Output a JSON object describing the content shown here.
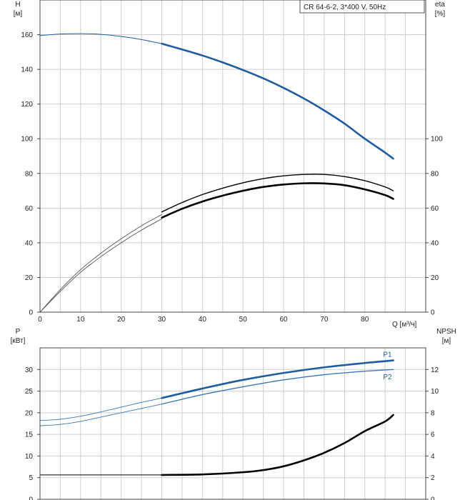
{
  "legend_text": "CR 64-6-2, 3*400 V, 50Hz",
  "colors": {
    "blue": "#1f5ca0",
    "blue_light": "#3b76b8",
    "black": "#000000",
    "grid": "#cfcfcf"
  },
  "chart_data": [
    {
      "type": "line",
      "id": "top",
      "left_axis": {
        "label_top": "H",
        "label_unit": "[м]",
        "min": 0,
        "max": 180,
        "ticks": [
          0,
          20,
          40,
          60,
          80,
          100,
          120,
          140,
          160
        ]
      },
      "right_axis": {
        "label_top": "eta",
        "label_unit": "[%]",
        "min": 0,
        "max": 180,
        "ticks": [
          0,
          20,
          40,
          60,
          80,
          100
        ]
      },
      "x_axis": {
        "label": "Q [м³/ч]",
        "min": 0,
        "max": 95,
        "ticks": [
          0,
          10,
          20,
          30,
          40,
          50,
          60,
          70,
          80
        ]
      },
      "series": [
        {
          "key": "H_thin",
          "color": "#1f5ca0",
          "width": 1,
          "axis": "left",
          "x": [
            0,
            5,
            10,
            15,
            20,
            25,
            30
          ],
          "y": [
            159.5,
            160.4,
            160.6,
            160.2,
            159,
            157.2,
            154.8
          ]
        },
        {
          "key": "H_thick",
          "color": "#1f5ca0",
          "width": 2.6,
          "axis": "left",
          "x": [
            30,
            35,
            40,
            45,
            50,
            55,
            60,
            65,
            70,
            75,
            80,
            85,
            87
          ],
          "y": [
            154.8,
            151.5,
            148,
            144,
            139.6,
            134.8,
            129.3,
            123.2,
            116.3,
            108.7,
            100,
            92,
            88.5
          ]
        },
        {
          "key": "eta1_thin",
          "color": "#555555",
          "width": 0.9,
          "axis": "right",
          "x": [
            0,
            5,
            10,
            15,
            20,
            25,
            30
          ],
          "y": [
            0,
            13,
            24.5,
            34,
            42.3,
            49.8,
            56.3
          ]
        },
        {
          "key": "eta2_thin",
          "color": "#555555",
          "width": 0.9,
          "axis": "right",
          "x": [
            0,
            5,
            10,
            15,
            20,
            25,
            30
          ],
          "y": [
            0,
            12,
            23,
            32,
            40,
            47.3,
            53.8
          ]
        },
        {
          "key": "eta1_thick",
          "color": "#000000",
          "width": 1.4,
          "axis": "right",
          "x": [
            30,
            35,
            40,
            45,
            50,
            55,
            60,
            65,
            70,
            75,
            80,
            85,
            87
          ],
          "y": [
            57.8,
            63.2,
            67.8,
            71.5,
            74.6,
            77,
            78.6,
            79.4,
            79.4,
            78.2,
            75.8,
            72.2,
            70
          ]
        },
        {
          "key": "eta2_thick",
          "color": "#000000",
          "width": 2.6,
          "axis": "right",
          "x": [
            30,
            35,
            40,
            45,
            50,
            55,
            60,
            65,
            70,
            75,
            80,
            85,
            87
          ],
          "y": [
            54.5,
            59.6,
            63.8,
            67.2,
            70,
            72.2,
            73.6,
            74.3,
            74.2,
            73.2,
            70.8,
            67.5,
            65.3
          ]
        }
      ]
    },
    {
      "type": "line",
      "id": "bottom",
      "left_axis": {
        "label_top": "P",
        "label_unit": "[кВт]",
        "min": 0,
        "max": 35,
        "ticks": [
          0,
          5,
          10,
          15,
          20,
          25,
          30
        ]
      },
      "right_axis": {
        "label_top": "NPSH",
        "label_unit": "[м]",
        "min": 0,
        "max": 14,
        "ticks": [
          0,
          2,
          4,
          6,
          8,
          10,
          12
        ]
      },
      "x_axis": {
        "min": 0,
        "max": 95
      },
      "series": [
        {
          "key": "P1_thin",
          "color": "#3b76b8",
          "width": 0.9,
          "axis": "left",
          "x": [
            0,
            5,
            10,
            15,
            20,
            25,
            30
          ],
          "y": [
            18.2,
            18.5,
            19.2,
            20.2,
            21.3,
            22.4,
            23.4
          ]
        },
        {
          "key": "P1_thick",
          "color": "#1f5ca0",
          "width": 2.6,
          "axis": "left",
          "x": [
            30,
            40,
            50,
            60,
            70,
            80,
            87
          ],
          "y": [
            23.4,
            25.6,
            27.6,
            29.2,
            30.5,
            31.5,
            32.1
          ]
        },
        {
          "key": "P2_thin",
          "color": "#3b76b8",
          "width": 0.9,
          "axis": "left",
          "x": [
            0,
            5,
            10,
            15,
            20,
            25,
            30
          ],
          "y": [
            17,
            17.3,
            18,
            19,
            20,
            21,
            22
          ]
        },
        {
          "key": "P2_thick",
          "color": "#3b76b8",
          "width": 1.4,
          "axis": "left",
          "x": [
            30,
            40,
            50,
            60,
            70,
            80,
            87
          ],
          "y": [
            22,
            24.2,
            26,
            27.6,
            28.8,
            29.6,
            30
          ]
        },
        {
          "key": "NPSH_thin",
          "color": "#000000",
          "width": 1,
          "axis": "right",
          "x": [
            0,
            30
          ],
          "y": [
            2.25,
            2.25
          ]
        },
        {
          "key": "NPSH_thick",
          "color": "#000000",
          "width": 2.6,
          "axis": "right",
          "x": [
            30,
            40,
            50,
            55,
            60,
            65,
            70,
            75,
            80,
            85,
            87
          ],
          "y": [
            2.25,
            2.3,
            2.5,
            2.7,
            3.05,
            3.6,
            4.3,
            5.2,
            6.3,
            7.2,
            7.8
          ]
        }
      ],
      "series_labels": [
        {
          "text": "P1",
          "x": 84.5,
          "y": 33.4
        },
        {
          "text": "P2",
          "x": 84.5,
          "y": 28.2
        }
      ]
    }
  ]
}
